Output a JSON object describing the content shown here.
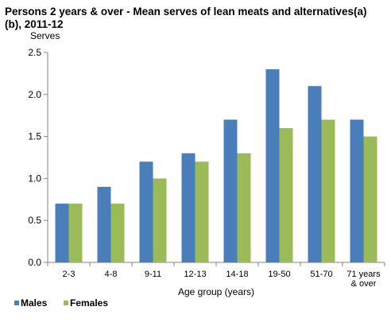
{
  "chart_data": {
    "type": "bar",
    "title": "Persons  2 years & over - Mean serves  of lean meats and alternatives(a)(b), 2011-12",
    "ylabel": "Serves",
    "xlabel": "Age group (years)",
    "ylim": [
      0,
      2.5
    ],
    "yticks": [
      "0.0",
      "0.5",
      "1.0",
      "1.5",
      "2.0",
      "2.5"
    ],
    "categories": [
      "2-3",
      "4-8",
      "9-11",
      "12-13",
      "14-18",
      "19-50",
      "51-70",
      "71 years & over"
    ],
    "category_label_lines": [
      [
        "2-3"
      ],
      [
        "4-8"
      ],
      [
        "9-11"
      ],
      [
        "12-13"
      ],
      [
        "14-18"
      ],
      [
        "19-50"
      ],
      [
        "51-70"
      ],
      [
        "71 years",
        "& over"
      ]
    ],
    "series": [
      {
        "name": "Males",
        "color": "#4a7ebb",
        "values": [
          0.7,
          0.9,
          1.2,
          1.3,
          1.7,
          2.3,
          2.1,
          1.7
        ]
      },
      {
        "name": "Females",
        "color": "#9bbb59",
        "values": [
          0.7,
          0.7,
          1.0,
          1.2,
          1.3,
          1.6,
          1.7,
          1.5
        ]
      }
    ],
    "grid": false,
    "legend_position": "bottom-left"
  }
}
